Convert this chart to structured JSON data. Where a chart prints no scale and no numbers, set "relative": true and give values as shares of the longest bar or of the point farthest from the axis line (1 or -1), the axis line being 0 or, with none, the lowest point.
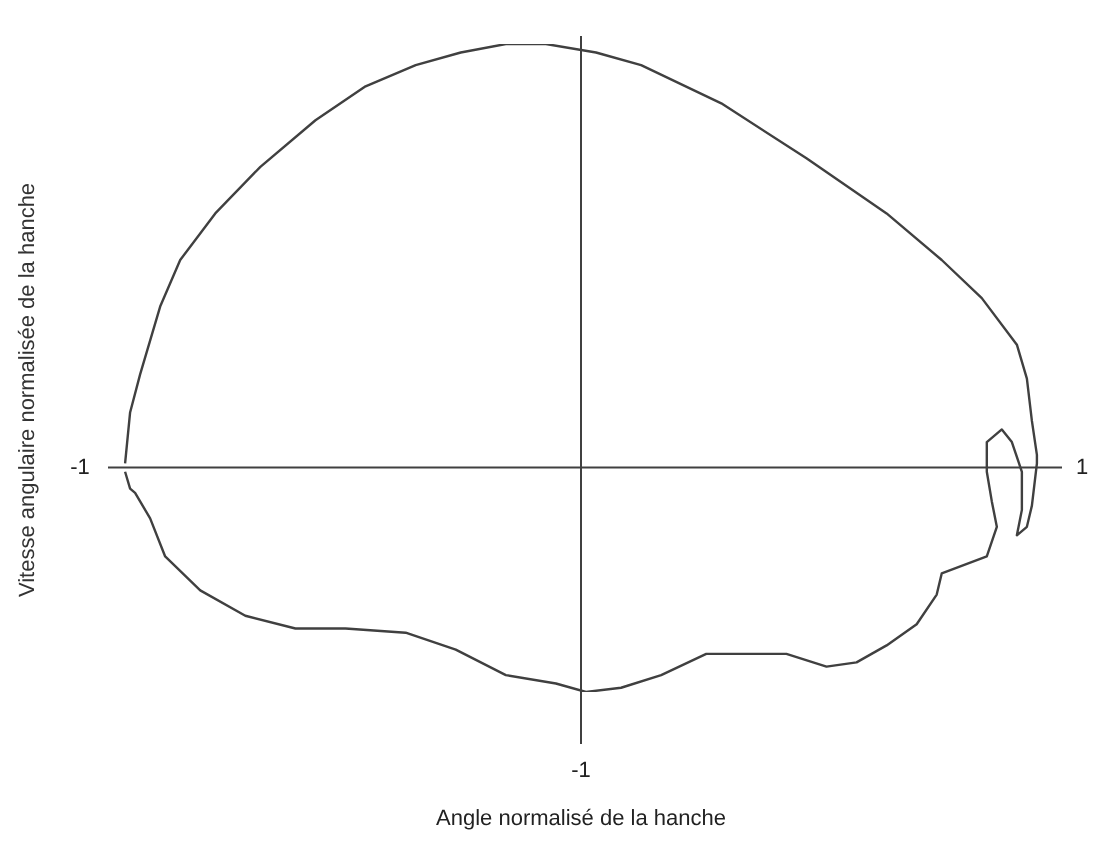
{
  "chart_data": {
    "type": "line",
    "ylabel": "Vitesse angulaire normalisée de la hanche",
    "annotations": [
      "-1",
      "Angle normalisé de la hanche"
    ],
    "relative": true,
    "xlim": [
      -1,
      1
    ],
    "xticks": [
      -1,
      1
    ],
    "grid": false,
    "legend": false,
    "marker": "none",
    "line_style": "solid",
    "series": [
      {
        "color": "#404040",
        "x": [
          -0.91,
          -0.9,
          -0.88,
          -0.84,
          -0.8,
          -0.73,
          -0.64,
          -0.53,
          -0.43,
          -0.33,
          -0.24,
          -0.15,
          -0.07,
          0.03,
          0.12,
          0.28,
          0.45,
          0.61,
          0.72,
          0.8,
          0.87,
          0.89,
          0.9,
          0.91,
          0.91,
          0.9,
          0.89,
          0.87,
          0.88,
          0.88,
          0.86,
          0.84,
          0.81,
          0.81,
          0.82,
          0.83,
          0.81,
          0.72,
          0.71,
          0.67,
          0.61,
          0.55,
          0.49,
          0.41,
          0.33,
          0.25,
          0.16,
          0.08,
          0.01,
          -0.05,
          -0.15,
          -0.25,
          -0.35,
          -0.47,
          -0.57,
          -0.67,
          -0.76,
          -0.83,
          -0.86,
          -0.89,
          -0.9,
          -0.91
        ],
        "values": [
          0.01,
          0.13,
          0.22,
          0.38,
          0.49,
          0.6,
          0.71,
          0.82,
          0.9,
          0.95,
          0.98,
          1,
          1,
          0.98,
          0.95,
          0.86,
          0.73,
          0.6,
          0.49,
          0.4,
          0.29,
          0.21,
          0.11,
          0.03,
          0.01,
          -0.09,
          -0.14,
          -0.16,
          -0.1,
          -0.01,
          0.06,
          0.09,
          0.06,
          -0.01,
          -0.08,
          -0.14,
          -0.21,
          -0.25,
          -0.3,
          -0.37,
          -0.42,
          -0.46,
          -0.47,
          -0.44,
          -0.44,
          -0.44,
          -0.49,
          -0.52,
          -0.53,
          -0.51,
          -0.49,
          -0.43,
          -0.39,
          -0.38,
          -0.38,
          -0.35,
          -0.29,
          -0.21,
          -0.12,
          -0.06,
          -0.05,
          -0.01
        ]
      }
    ]
  }
}
